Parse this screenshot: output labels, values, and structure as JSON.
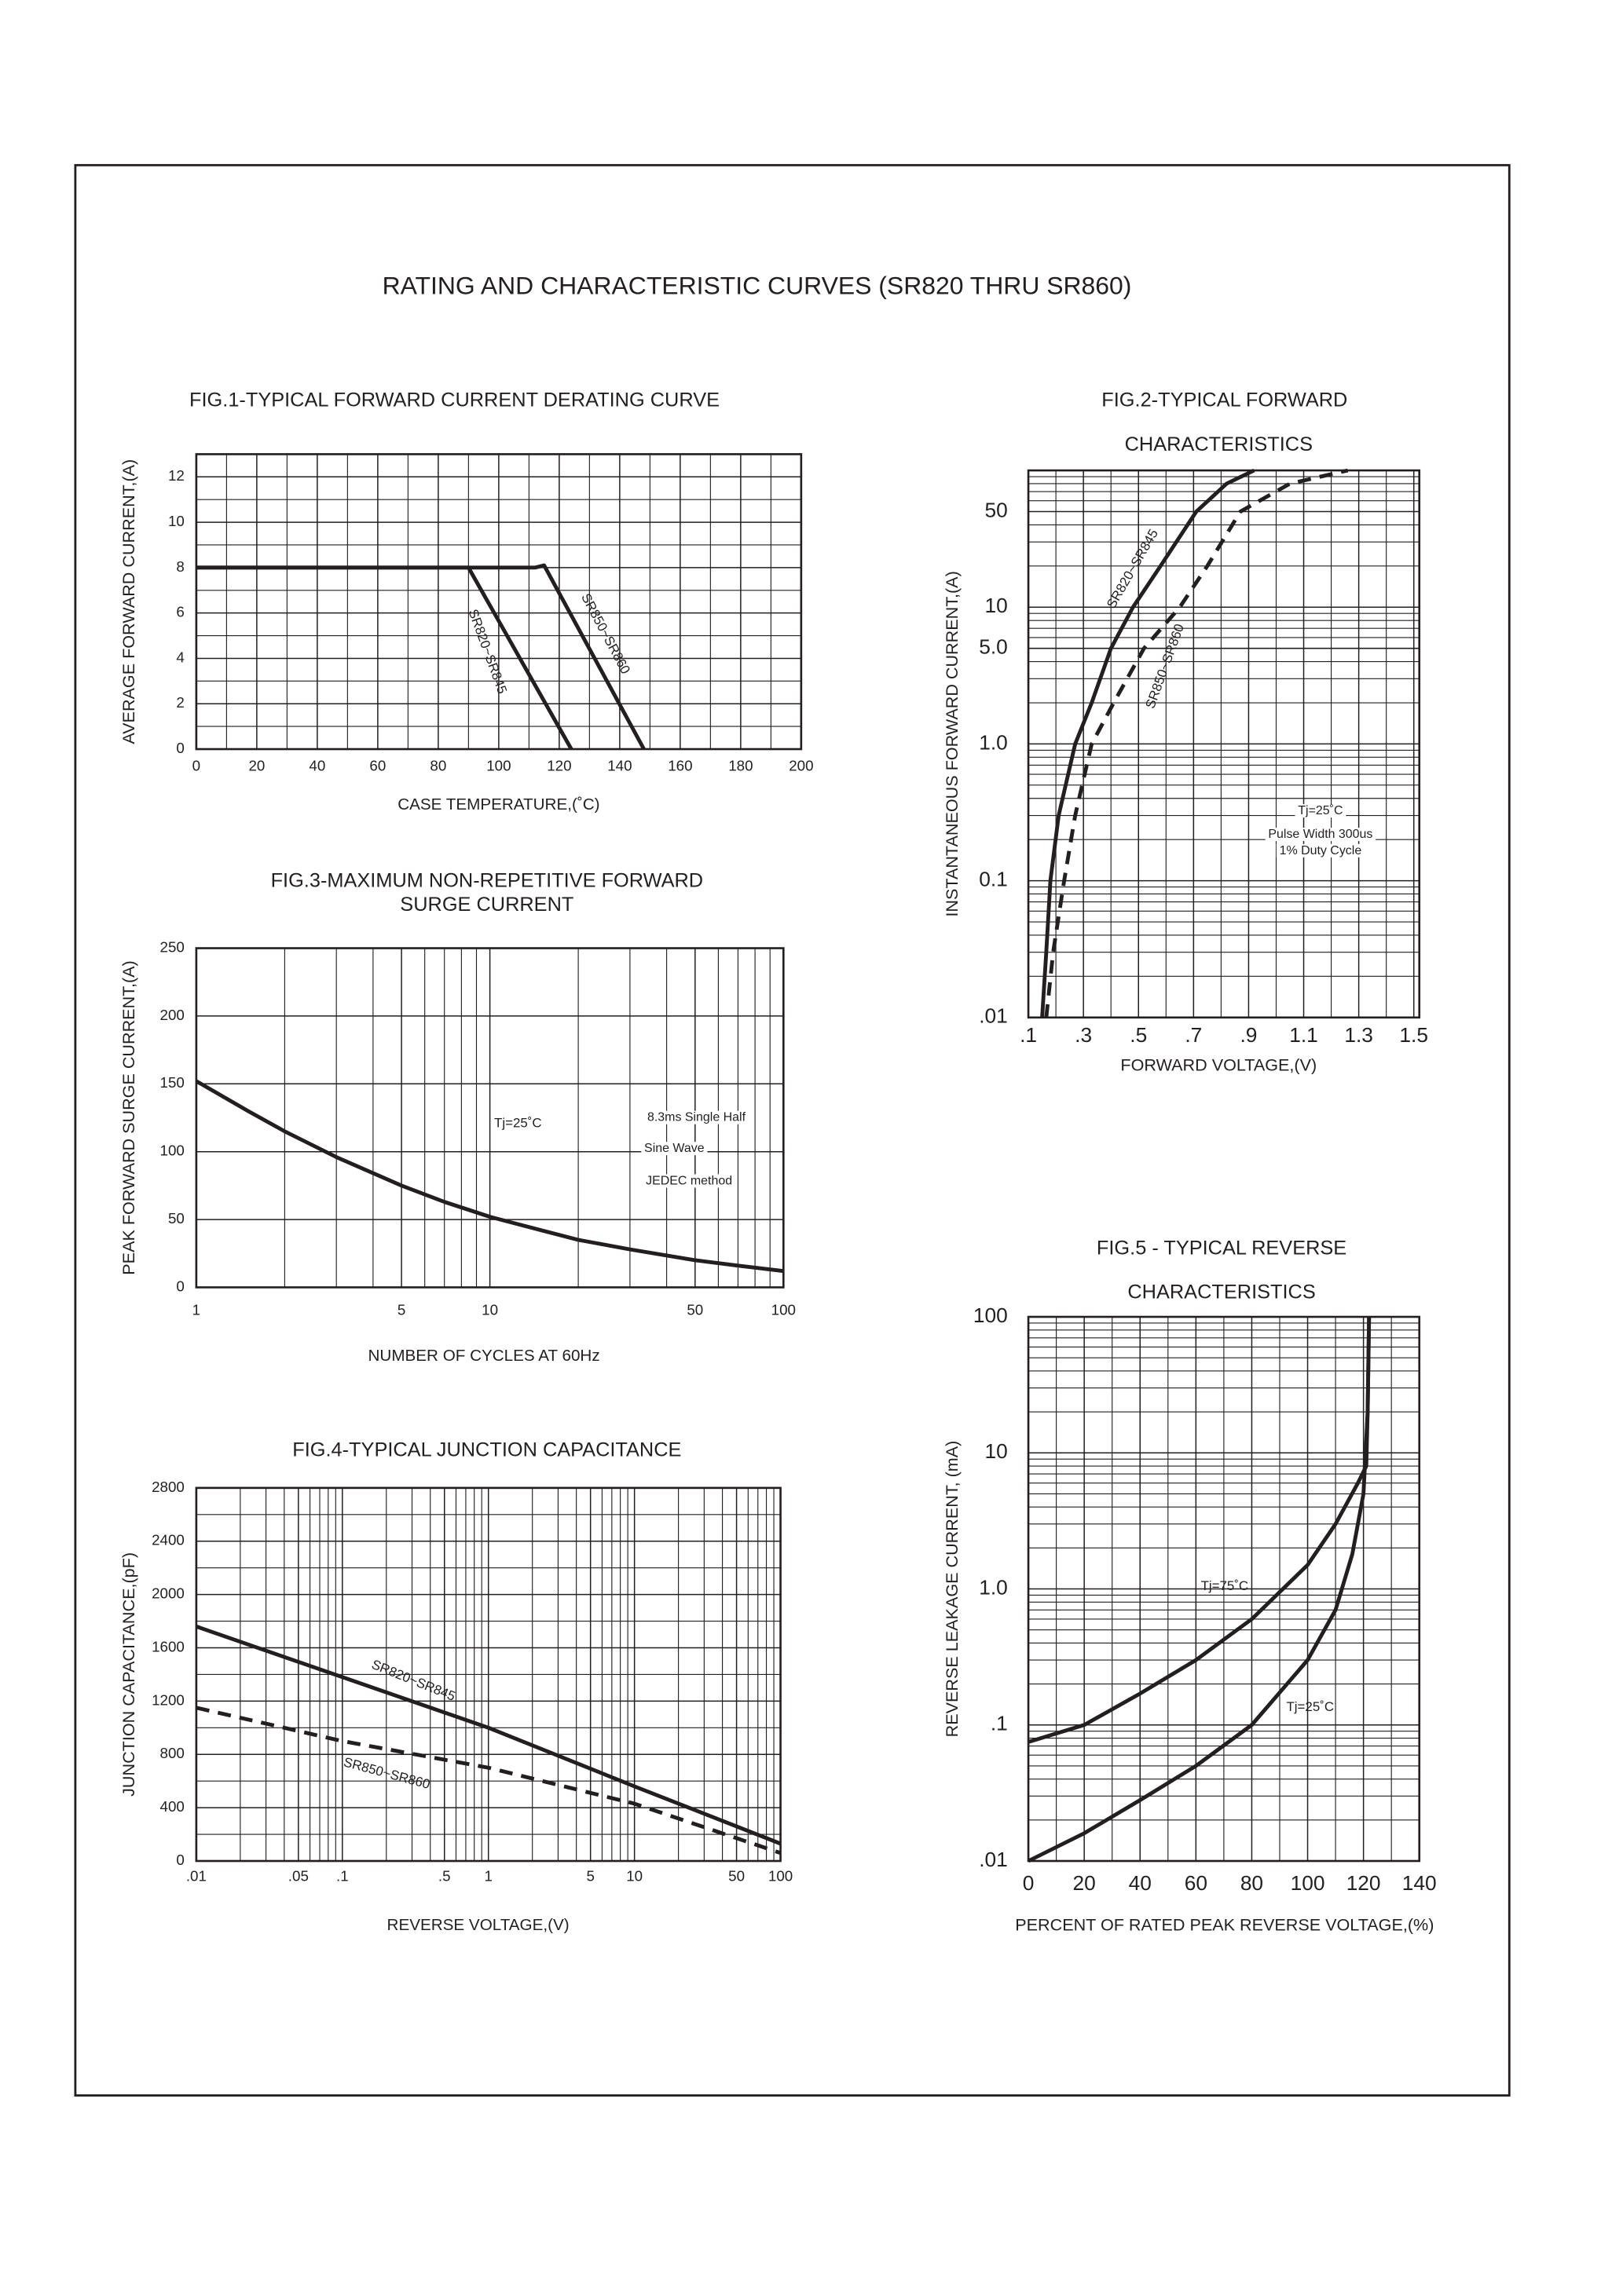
{
  "title": "RATING AND CHARACTERISTIC CURVES (SR820 THRU SR860)",
  "chart_data": [
    {
      "type": "line",
      "title": [
        "FIG.1-TYPICAL FORWARD CURRENT DERATING CURVE"
      ],
      "x_label": "CASE  TEMPERATURE,(˚C)",
      "y_label": "AVERAGE FORWARD CURRENT,(A)",
      "xscale": "linear",
      "yscale": "linear",
      "grid": true,
      "xlim": [
        0,
        200
      ],
      "xticks": [
        0,
        20,
        40,
        60,
        80,
        100,
        120,
        140,
        160,
        180,
        200
      ],
      "xminorticks": [
        10,
        30,
        50,
        70,
        90,
        110,
        130,
        150,
        170,
        190
      ],
      "ylim": [
        0,
        13
      ],
      "yticks": [
        0,
        2,
        4,
        6,
        8,
        10,
        12
      ],
      "yminorticks": [
        1,
        3,
        5,
        7,
        9,
        11
      ],
      "series": [
        {
          "name": "SR820~SR845",
          "color": "#231f20",
          "style": "solid",
          "x": [
            0,
            90,
            124
          ],
          "values": [
            8,
            8,
            0
          ]
        },
        {
          "name": "SR850~SR860",
          "color": "#231f20",
          "style": "solid",
          "x": [
            0,
            112,
            115,
            148
          ],
          "values": [
            8,
            8,
            8.1,
            0
          ]
        }
      ],
      "annotations": []
    },
    {
      "type": "line",
      "title": [
        "FIG.2-TYPICAL FORWARD",
        "CHARACTERISTICS"
      ],
      "x_label": "FORWARD VOLTAGE,(V)",
      "y_label": "INSTANTANEOUS FORWARD CURRENT,(A)",
      "xscale": "linear",
      "yscale": "log",
      "grid": true,
      "xlim": [
        0.1,
        1.52
      ],
      "xticks": [
        {
          "value": 0.1,
          "label": ".1"
        },
        {
          "value": 0.3,
          "label": ".3"
        },
        {
          "value": 0.5,
          "label": ".5"
        },
        {
          "value": 0.7,
          "label": ".7"
        },
        {
          "value": 0.9,
          "label": ".9"
        },
        1.1,
        1.3,
        1.5
      ],
      "xminorticks": [
        0.2,
        0.4,
        0.6,
        0.8,
        1.0,
        1.2,
        1.4
      ],
      "ylim": [
        0.01,
        100
      ],
      "yticks": [
        {
          "value": 0.01,
          "label": ".01"
        },
        {
          "value": 0.1,
          "label": "0.1"
        },
        {
          "value": 1,
          "label": "1.0"
        },
        {
          "value": 5,
          "label": "5.0"
        },
        10,
        50
      ],
      "yminorticks": [
        0.02,
        0.03,
        0.04,
        0.05,
        0.06,
        0.07,
        0.08,
        0.09,
        0.2,
        0.3,
        0.4,
        0.5,
        0.6,
        0.7,
        0.8,
        0.9,
        2,
        3,
        4,
        6,
        7,
        8,
        9,
        20,
        30,
        40,
        60,
        70,
        80,
        90
      ],
      "series": [
        {
          "name": "SR820~SR845",
          "color": "#231f20",
          "style": "solid",
          "x": [
            0.15,
            0.165,
            0.18,
            0.21,
            0.27,
            0.33,
            0.4,
            0.48,
            0.58,
            0.71,
            0.82,
            0.92
          ],
          "values": [
            0.01,
            0.03,
            0.1,
            0.3,
            1,
            2,
            5,
            10,
            20,
            50,
            80,
            100
          ]
        },
        {
          "name": "SR850~SR860",
          "color": "#231f20",
          "style": "dashed",
          "x": [
            0.165,
            0.19,
            0.23,
            0.27,
            0.33,
            0.41,
            0.52,
            0.65,
            0.75,
            0.87,
            1.05,
            1.26
          ],
          "values": [
            0.01,
            0.03,
            0.1,
            0.3,
            1,
            2,
            5,
            10,
            20,
            50,
            80,
            100
          ]
        }
      ],
      "annotations": [
        "Tj=25˚C",
        "Pulse Width 300us",
        "1% Duty Cycle"
      ]
    },
    {
      "type": "line",
      "title": [
        "FIG.3-MAXIMUM NON-REPETITIVE FORWARD",
        "SURGE CURRENT"
      ],
      "x_label": "NUMBER OF CYCLES AT 60Hz",
      "y_label": "PEAK FORWARD SURGE CURRENT,(A)",
      "xscale": "log",
      "yscale": "linear",
      "grid": true,
      "xlim": [
        1,
        100
      ],
      "xticks": [
        1,
        5,
        10,
        50,
        100
      ],
      "xminorticks": [
        2,
        3,
        4,
        6,
        7,
        8,
        9,
        20,
        30,
        40,
        60,
        70,
        80,
        90
      ],
      "ylim": [
        0,
        250
      ],
      "yticks": [
        0,
        50,
        100,
        150,
        200,
        250
      ],
      "yminorticks": [],
      "series": [
        {
          "name": "Tj=25˚C",
          "color": "#231f20",
          "style": "solid",
          "x": [
            1,
            1.5,
            2,
            3,
            5,
            7,
            10,
            15,
            20,
            30,
            50,
            70,
            100
          ],
          "values": [
            152,
            130,
            115,
            96,
            75,
            63,
            52,
            42,
            35,
            28,
            20,
            16,
            12
          ]
        }
      ],
      "annotations": [
        "8.3ms Single Half",
        "Sine Wave",
        "JEDEC method"
      ]
    },
    {
      "type": "line",
      "title": [
        "FIG.4-TYPICAL JUNCTION CAPACITANCE"
      ],
      "x_label": "REVERSE VOLTAGE,(V)",
      "y_label": "JUNCTION CAPACITANCE,(pF)",
      "xscale": "log",
      "yscale": "linear",
      "grid": true,
      "xlim": [
        0.01,
        100
      ],
      "xticks": [
        {
          "value": 0.01,
          "label": ".01"
        },
        {
          "value": 0.05,
          "label": ".05"
        },
        {
          "value": 0.1,
          "label": ".1"
        },
        {
          "value": 0.5,
          "label": ".5"
        },
        1,
        5,
        10,
        50,
        100
      ],
      "xminorticks": [
        0.02,
        0.03,
        0.04,
        0.06,
        0.07,
        0.08,
        0.09,
        0.2,
        0.3,
        0.4,
        0.6,
        0.7,
        0.8,
        0.9,
        2,
        3,
        4,
        6,
        7,
        8,
        9,
        20,
        30,
        40,
        60,
        70,
        80,
        90
      ],
      "ylim": [
        0,
        2800
      ],
      "yticks": [
        0,
        400,
        800,
        1200,
        1600,
        2000,
        2400,
        2800
      ],
      "yminorticks": [
        200,
        600,
        1000,
        1400,
        1800,
        2200,
        2600
      ],
      "series": [
        {
          "name": "SR820~SR845",
          "color": "#231f20",
          "style": "solid",
          "x": [
            0.01,
            0.1,
            1,
            10,
            100
          ],
          "values": [
            1760,
            1380,
            1000,
            560,
            130
          ]
        },
        {
          "name": "SR850~SR860",
          "color": "#231f20",
          "style": "dashed",
          "x": [
            0.01,
            0.1,
            1,
            10,
            100
          ],
          "values": [
            1150,
            900,
            700,
            430,
            60
          ]
        }
      ],
      "annotations": []
    },
    {
      "type": "line",
      "title": [
        "FIG.5 - TYPICAL REVERSE",
        "CHARACTERISTICS"
      ],
      "x_label": "PERCENT OF RATED PEAK REVERSE VOLTAGE,(%)",
      "y_label": "REVERSE LEAKAGE CURRENT, (mA)",
      "xscale": "linear",
      "yscale": "log",
      "grid": true,
      "xlim": [
        0,
        140
      ],
      "xticks": [
        0,
        20,
        40,
        60,
        80,
        100,
        120,
        140
      ],
      "xminorticks": [
        10,
        30,
        50,
        70,
        90,
        110,
        130
      ],
      "ylim": [
        0.01,
        100
      ],
      "yticks": [
        {
          "value": 0.01,
          "label": ".01"
        },
        {
          "value": 0.1,
          "label": ".1"
        },
        {
          "value": 1,
          "label": "1.0"
        },
        10,
        100
      ],
      "yminorticks": [
        0.02,
        0.03,
        0.04,
        0.05,
        0.06,
        0.07,
        0.08,
        0.09,
        0.2,
        0.3,
        0.4,
        0.5,
        0.6,
        0.7,
        0.8,
        0.9,
        2,
        3,
        4,
        5,
        6,
        7,
        8,
        9,
        20,
        30,
        40,
        50,
        60,
        70,
        80,
        90
      ],
      "series": [
        {
          "name": "Tj=75˚C",
          "color": "#231f20",
          "style": "solid",
          "x": [
            0,
            20,
            40,
            60,
            80,
            100,
            110,
            118,
            121,
            121.5,
            122
          ],
          "values": [
            0.075,
            0.1,
            0.17,
            0.3,
            0.6,
            1.5,
            3,
            6,
            8,
            20,
            100
          ]
        },
        {
          "name": "Tj=25˚C",
          "color": "#231f20",
          "style": "solid",
          "x": [
            0,
            20,
            40,
            60,
            80,
            100,
            110,
            116,
            120,
            121.5,
            122
          ],
          "values": [
            0.01,
            0.016,
            0.028,
            0.05,
            0.1,
            0.3,
            0.7,
            1.8,
            5,
            20,
            100
          ]
        }
      ],
      "annotations": []
    }
  ]
}
